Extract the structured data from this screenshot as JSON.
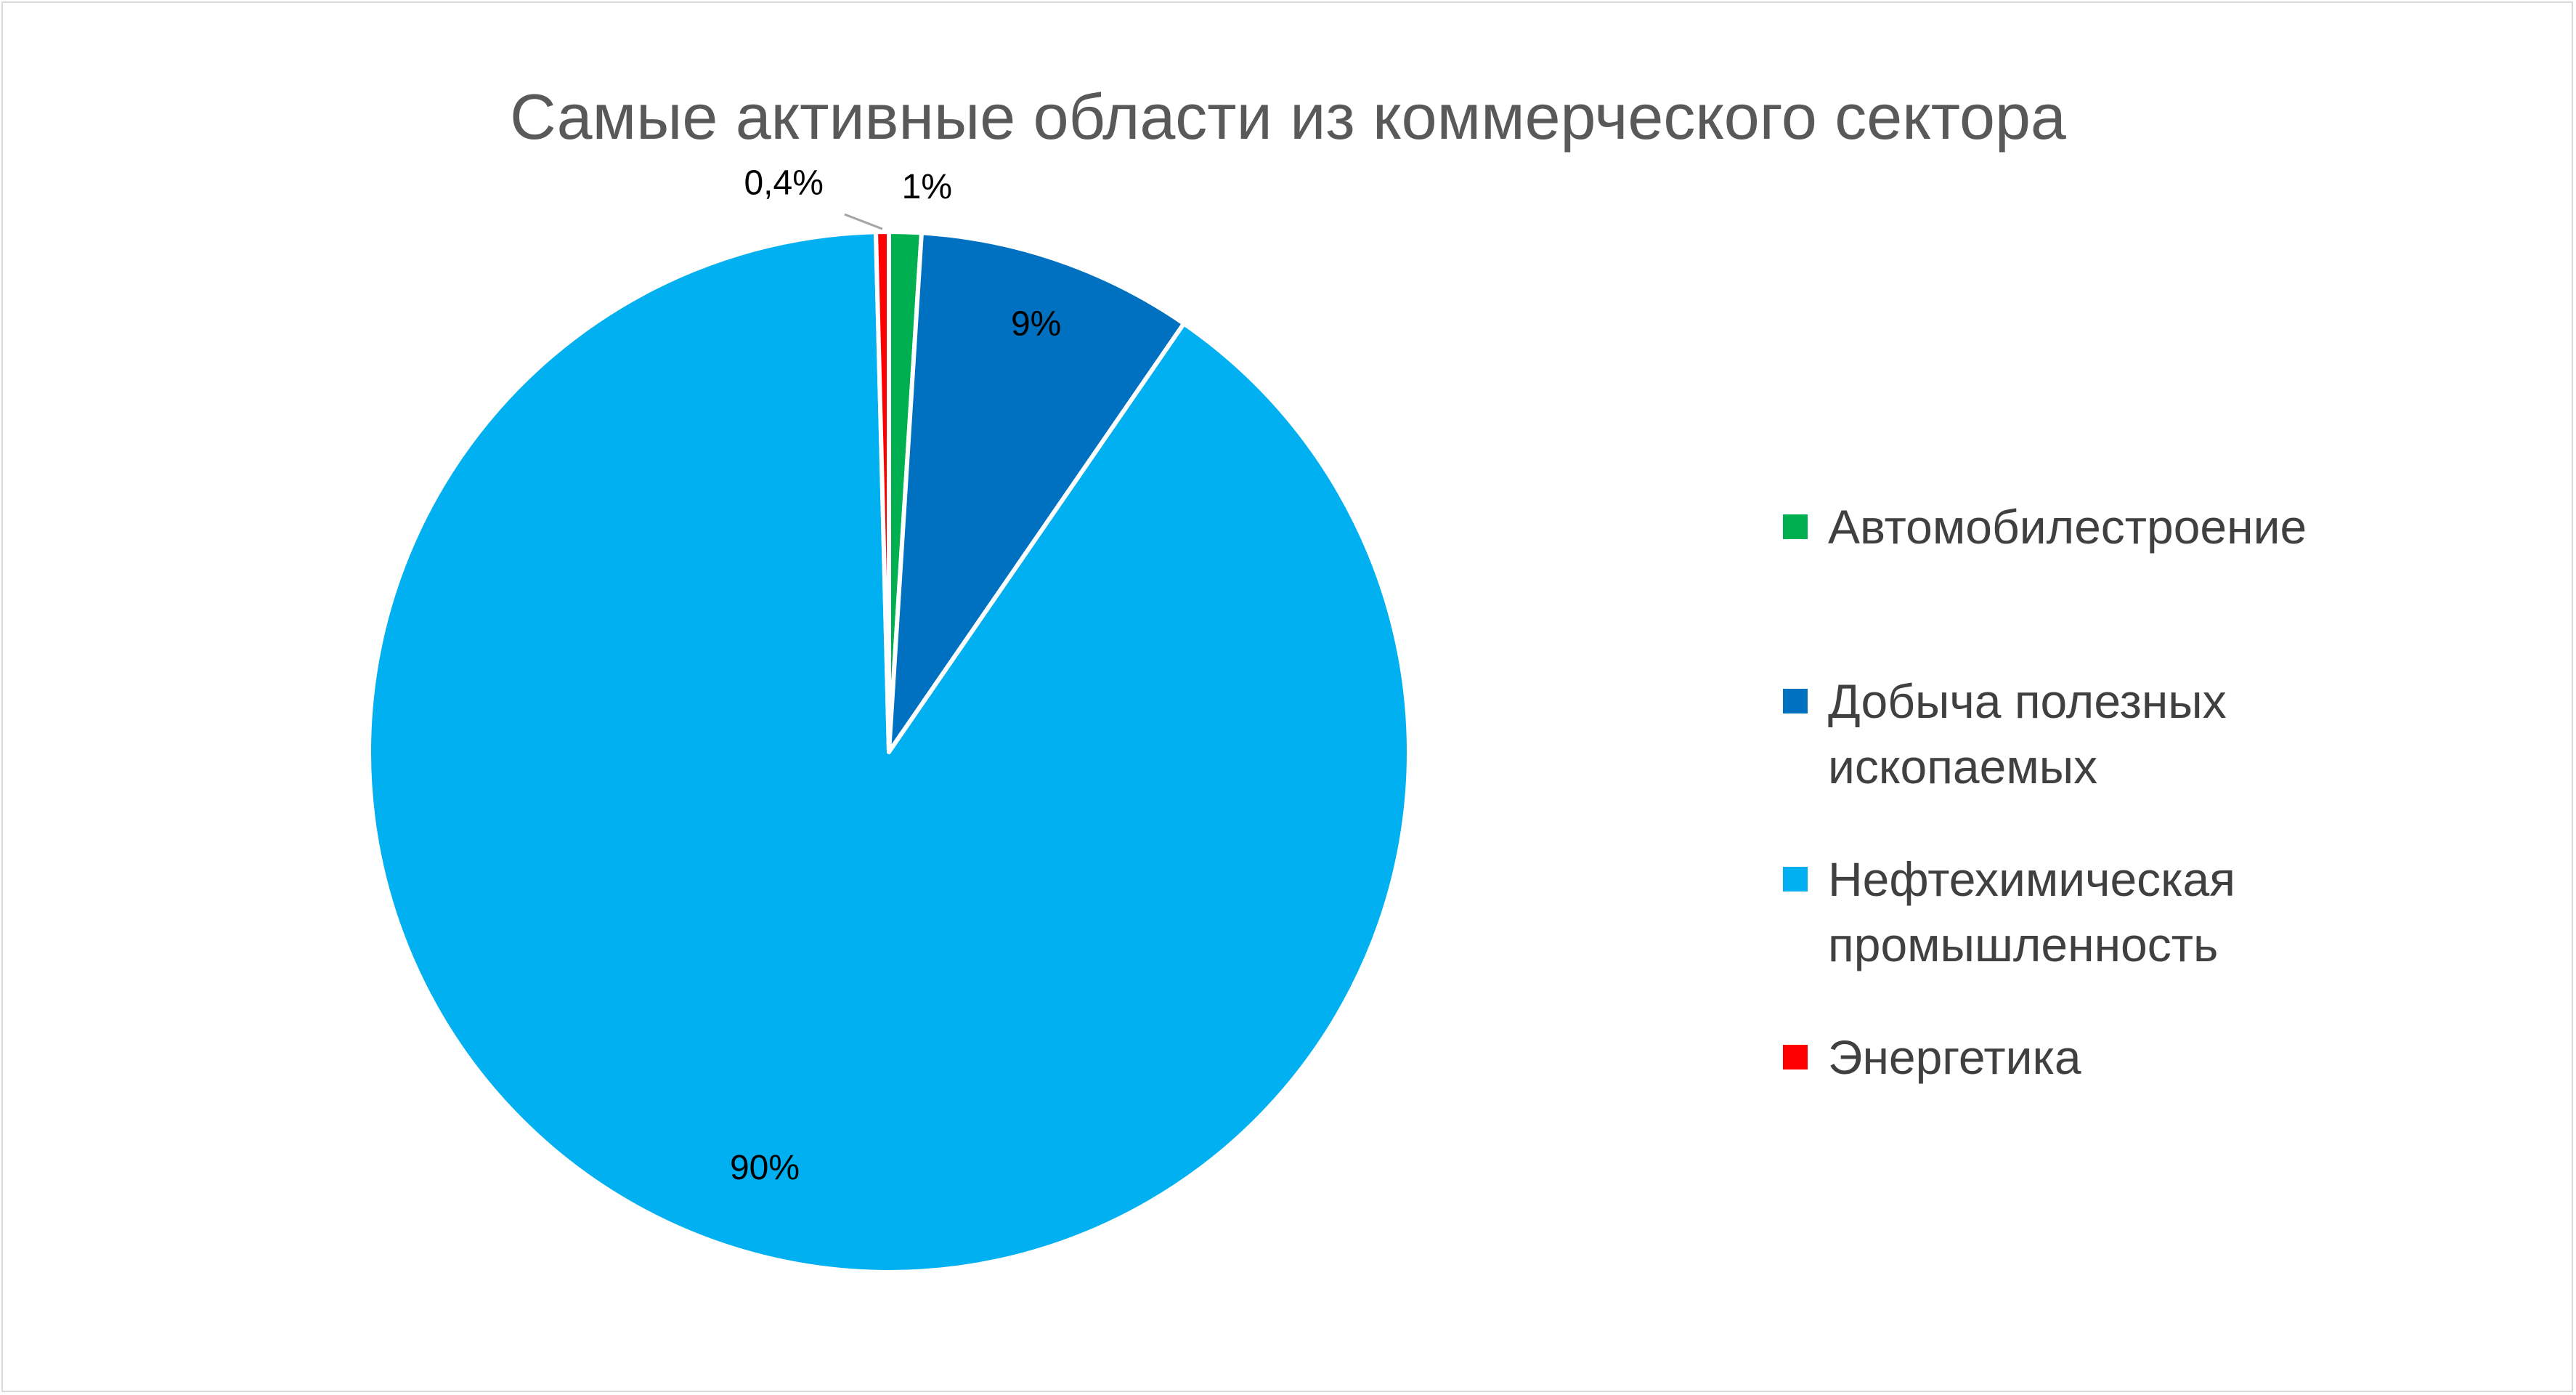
{
  "chart_data": {
    "type": "pie",
    "title": "Самые активные области из коммерческого сектора",
    "legend_position": "right",
    "slices": [
      {
        "name": "Автомобилестроение",
        "value": 1,
        "label": "1%",
        "color": "#00b050"
      },
      {
        "name": "Добыча полезных ископаемых",
        "value": 8.6,
        "label": "9%",
        "color": "#0070c0"
      },
      {
        "name": "Нефтехимическая промышленность",
        "value": 90,
        "label": "90%",
        "color": "#00b0f0"
      },
      {
        "name": "Энергетика",
        "value": 0.4,
        "label": "0,4%",
        "color": "#ff0000"
      }
    ]
  }
}
